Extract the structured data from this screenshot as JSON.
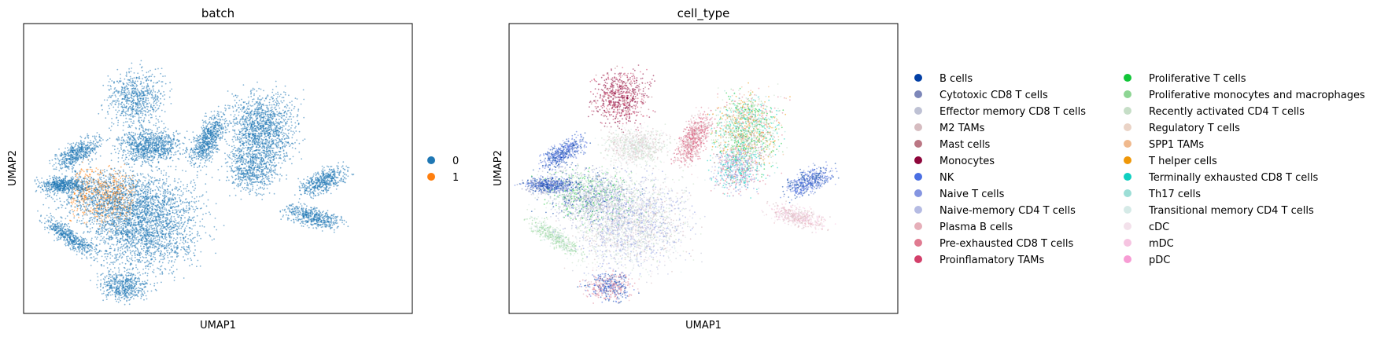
{
  "chart_data": [
    {
      "type": "scatter",
      "title": "batch",
      "xlabel": "UMAP1",
      "ylabel": "UMAP2",
      "grid": false,
      "legend_position": "right",
      "series": [
        {
          "name": "0",
          "color": "#1f77b4"
        },
        {
          "name": "1",
          "color": "#ff7f0e"
        }
      ]
    },
    {
      "type": "scatter",
      "title": "cell_type",
      "xlabel": "UMAP1",
      "ylabel": "UMAP2",
      "grid": false,
      "legend_position": "right",
      "series": [
        {
          "name": "B cells",
          "color": "#023fa5"
        },
        {
          "name": "Cytotoxic CD8 T cells",
          "color": "#7d87b9"
        },
        {
          "name": "Effector memory CD8 T cells",
          "color": "#bec1d4"
        },
        {
          "name": "M2 TAMs",
          "color": "#d6bcc0"
        },
        {
          "name": "Mast cells",
          "color": "#bb7784"
        },
        {
          "name": "Monocytes",
          "color": "#8e063b"
        },
        {
          "name": "NK",
          "color": "#4a6fe3"
        },
        {
          "name": "Naive T cells",
          "color": "#8595e1"
        },
        {
          "name": "Naive-memory CD4 T cells",
          "color": "#b5bbe3"
        },
        {
          "name": "Plasma B cells",
          "color": "#e6afb9"
        },
        {
          "name": "Pre-exhausted CD8 T cells",
          "color": "#e07b91"
        },
        {
          "name": "Proinflamatory TAMs",
          "color": "#d33f6a"
        },
        {
          "name": "Proliferative T cells",
          "color": "#11c638"
        },
        {
          "name": "Proliferative monocytes and macrophages",
          "color": "#8dd593"
        },
        {
          "name": "Recently activated CD4 T cells",
          "color": "#c6dec7"
        },
        {
          "name": "Regulatory T cells",
          "color": "#ead3c6"
        },
        {
          "name": "SPP1 TAMs",
          "color": "#f0b98d"
        },
        {
          "name": "T helper cells",
          "color": "#ef9708"
        },
        {
          "name": "Terminally exhausted CD8 T cells",
          "color": "#0fcfc0"
        },
        {
          "name": "Th17 cells",
          "color": "#9cded6"
        },
        {
          "name": "Transitional memory CD4 T cells",
          "color": "#d5eae7"
        },
        {
          "name": "cDC",
          "color": "#f3e1eb"
        },
        {
          "name": "mDC",
          "color": "#f6c4e1"
        },
        {
          "name": "pDC",
          "color": "#f79cd4"
        }
      ]
    }
  ]
}
